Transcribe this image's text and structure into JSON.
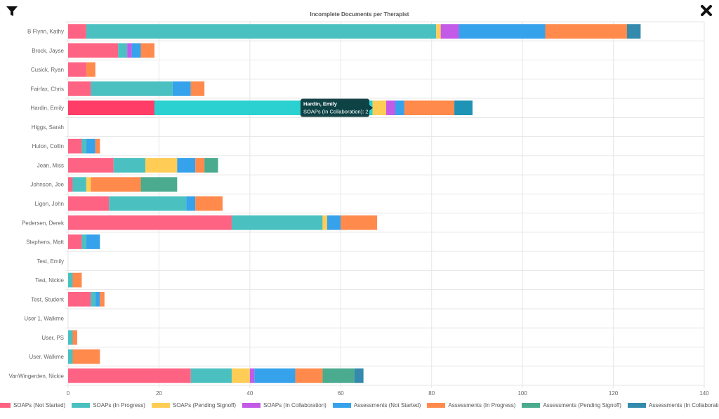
{
  "toolbar": {
    "filter_icon": "filter-icon",
    "close_icon": "close-icon"
  },
  "chart_data": {
    "type": "bar",
    "orientation": "horizontal",
    "stacked": true,
    "title": "Incomplete Documents per Therapist",
    "xlim": [
      0,
      140
    ],
    "xticks": [
      0,
      20,
      40,
      60,
      80,
      100,
      120,
      140
    ],
    "grid": true,
    "legend_position": "bottom",
    "categories": [
      "B Flynn, Kathy",
      "Brock, Jayse",
      "Cusick, Ryan",
      "Fairfax, Chris",
      "Hardin, Emily",
      "Higgs, Sarah",
      "Hulon, Collin",
      "Jean, Miss",
      "Johnson, Joe",
      "Ligon, John",
      "Pedersen, Derek",
      "Stephens, Matt",
      "Test, Emily",
      "Test, Nickie",
      "Test, Student",
      "User 1, Walkme",
      "User, PS",
      "User, Walkme",
      "VanWingerden, Nickie"
    ],
    "series": [
      {
        "name": "SOAPs (Not Started)",
        "color": "#ff6384",
        "values": [
          4,
          11,
          4,
          5,
          19,
          0,
          3,
          10,
          1,
          9,
          36,
          3,
          0,
          0,
          5,
          0,
          0,
          0,
          27
        ]
      },
      {
        "name": "SOAPs (In Progress)",
        "color": "#4bc0c0",
        "values": [
          77,
          2,
          0,
          18,
          48,
          0,
          1,
          7,
          3,
          17,
          20,
          1,
          0,
          1,
          1,
          0,
          1,
          1,
          9
        ]
      },
      {
        "name": "SOAPs (Pending Signoff)",
        "color": "#ffcd56",
        "values": [
          1,
          0,
          0,
          0,
          3,
          0,
          0,
          7,
          1,
          0,
          1,
          0,
          0,
          0,
          0,
          0,
          0,
          0,
          4
        ]
      },
      {
        "name": "SOAPs (In Collaboration)",
        "color": "#c45ae8",
        "values": [
          4,
          1,
          0,
          0,
          2,
          0,
          0,
          0,
          0,
          0,
          0,
          0,
          0,
          0,
          0,
          0,
          0,
          0,
          1
        ]
      },
      {
        "name": "Assessments (Not Started)",
        "color": "#36a2eb",
        "values": [
          19,
          2,
          0,
          4,
          2,
          0,
          2,
          4,
          0,
          2,
          3,
          3,
          0,
          0,
          1,
          0,
          0,
          0,
          9
        ]
      },
      {
        "name": "Assessments (In Progress)",
        "color": "#ff8a4c",
        "values": [
          18,
          3,
          2,
          3,
          11,
          0,
          1,
          2,
          11,
          6,
          8,
          0,
          0,
          2,
          1,
          0,
          1,
          6,
          6
        ]
      },
      {
        "name": "Assessments (Pending Signoff)",
        "color": "#4aab8e",
        "values": [
          0,
          0,
          0,
          0,
          0,
          0,
          0,
          3,
          8,
          0,
          0,
          0,
          0,
          0,
          0,
          0,
          0,
          0,
          7
        ]
      },
      {
        "name": "Assessments (In Collaboration)",
        "color": "#338aad",
        "values": [
          3,
          0,
          0,
          0,
          4,
          0,
          0,
          0,
          0,
          0,
          0,
          0,
          0,
          0,
          0,
          0,
          0,
          0,
          2
        ]
      }
    ],
    "highlight": {
      "category_index": 4,
      "series_index": 1
    },
    "tooltip": {
      "title": "Hardin, Emily",
      "body": "SOAPs (In Collaboration): 2"
    }
  }
}
